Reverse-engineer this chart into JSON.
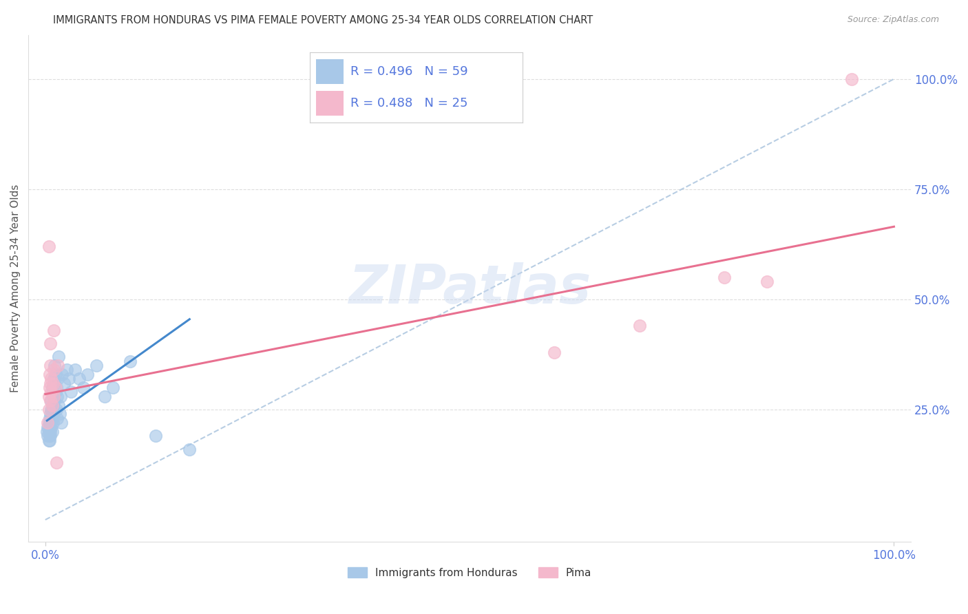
{
  "title": "IMMIGRANTS FROM HONDURAS VS PIMA FEMALE POVERTY AMONG 25-34 YEAR OLDS CORRELATION CHART",
  "source": "Source: ZipAtlas.com",
  "ylabel": "Female Poverty Among 25-34 Year Olds",
  "watermark": "ZIPatlas",
  "legend_r_blue": "R = 0.496",
  "legend_n_blue": "N = 59",
  "legend_r_pink": "R = 0.488",
  "legend_n_pink": "N = 25",
  "blue_color": "#a8c8e8",
  "pink_color": "#f4b8cc",
  "blue_line_color": "#4488cc",
  "pink_line_color": "#e87090",
  "diag_line_color": "#b0c8e0",
  "label_color": "#5577dd",
  "title_color": "#333333",
  "source_color": "#999999",
  "blue_scatter": [
    [
      0.002,
      0.2
    ],
    [
      0.003,
      0.19
    ],
    [
      0.003,
      0.21
    ],
    [
      0.004,
      0.18
    ],
    [
      0.004,
      0.22
    ],
    [
      0.004,
      0.2
    ],
    [
      0.005,
      0.19
    ],
    [
      0.005,
      0.21
    ],
    [
      0.005,
      0.23
    ],
    [
      0.005,
      0.18
    ],
    [
      0.006,
      0.2
    ],
    [
      0.006,
      0.22
    ],
    [
      0.006,
      0.24
    ],
    [
      0.006,
      0.19
    ],
    [
      0.007,
      0.21
    ],
    [
      0.007,
      0.23
    ],
    [
      0.007,
      0.25
    ],
    [
      0.007,
      0.27
    ],
    [
      0.007,
      0.22
    ],
    [
      0.008,
      0.2
    ],
    [
      0.008,
      0.23
    ],
    [
      0.008,
      0.25
    ],
    [
      0.008,
      0.3
    ],
    [
      0.009,
      0.22
    ],
    [
      0.009,
      0.26
    ],
    [
      0.009,
      0.29
    ],
    [
      0.01,
      0.24
    ],
    [
      0.01,
      0.28
    ],
    [
      0.01,
      0.32
    ],
    [
      0.011,
      0.27
    ],
    [
      0.011,
      0.31
    ],
    [
      0.011,
      0.35
    ],
    [
      0.012,
      0.29
    ],
    [
      0.012,
      0.33
    ],
    [
      0.013,
      0.25
    ],
    [
      0.013,
      0.3
    ],
    [
      0.014,
      0.23
    ],
    [
      0.014,
      0.28
    ],
    [
      0.015,
      0.32
    ],
    [
      0.016,
      0.26
    ],
    [
      0.016,
      0.37
    ],
    [
      0.017,
      0.24
    ],
    [
      0.018,
      0.28
    ],
    [
      0.019,
      0.22
    ],
    [
      0.02,
      0.33
    ],
    [
      0.022,
      0.31
    ],
    [
      0.025,
      0.34
    ],
    [
      0.028,
      0.32
    ],
    [
      0.03,
      0.29
    ],
    [
      0.035,
      0.34
    ],
    [
      0.04,
      0.32
    ],
    [
      0.045,
      0.3
    ],
    [
      0.05,
      0.33
    ],
    [
      0.06,
      0.35
    ],
    [
      0.07,
      0.28
    ],
    [
      0.08,
      0.3
    ],
    [
      0.1,
      0.36
    ],
    [
      0.13,
      0.19
    ],
    [
      0.17,
      0.16
    ]
  ],
  "pink_scatter": [
    [
      0.003,
      0.22
    ],
    [
      0.004,
      0.25
    ],
    [
      0.004,
      0.28
    ],
    [
      0.005,
      0.3
    ],
    [
      0.005,
      0.33
    ],
    [
      0.006,
      0.27
    ],
    [
      0.006,
      0.31
    ],
    [
      0.006,
      0.35
    ],
    [
      0.006,
      0.4
    ],
    [
      0.007,
      0.29
    ],
    [
      0.007,
      0.32
    ],
    [
      0.008,
      0.26
    ],
    [
      0.009,
      0.31
    ],
    [
      0.01,
      0.28
    ],
    [
      0.01,
      0.34
    ],
    [
      0.01,
      0.43
    ],
    [
      0.012,
      0.3
    ],
    [
      0.013,
      0.13
    ],
    [
      0.015,
      0.35
    ],
    [
      0.004,
      0.62
    ],
    [
      0.6,
      0.38
    ],
    [
      0.7,
      0.44
    ],
    [
      0.8,
      0.55
    ],
    [
      0.85,
      0.54
    ],
    [
      0.95,
      1.0
    ]
  ],
  "blue_trendline_x": [
    0.002,
    0.17
  ],
  "blue_trendline_y": [
    0.225,
    0.455
  ],
  "pink_trendline_x": [
    0.0,
    1.0
  ],
  "pink_trendline_y": [
    0.285,
    0.665
  ],
  "diag_line_x": [
    0.0,
    1.0
  ],
  "diag_line_y": [
    0.0,
    1.0
  ],
  "xlim": [
    -0.02,
    1.02
  ],
  "ylim": [
    -0.05,
    1.1
  ],
  "x_tick_positions": [
    0.0,
    1.0
  ],
  "x_tick_labels": [
    "0.0%",
    "100.0%"
  ],
  "y_tick_positions": [
    0.25,
    0.5,
    0.75,
    1.0
  ],
  "y_tick_labels": [
    "25.0%",
    "50.0%",
    "75.0%",
    "100.0%"
  ]
}
